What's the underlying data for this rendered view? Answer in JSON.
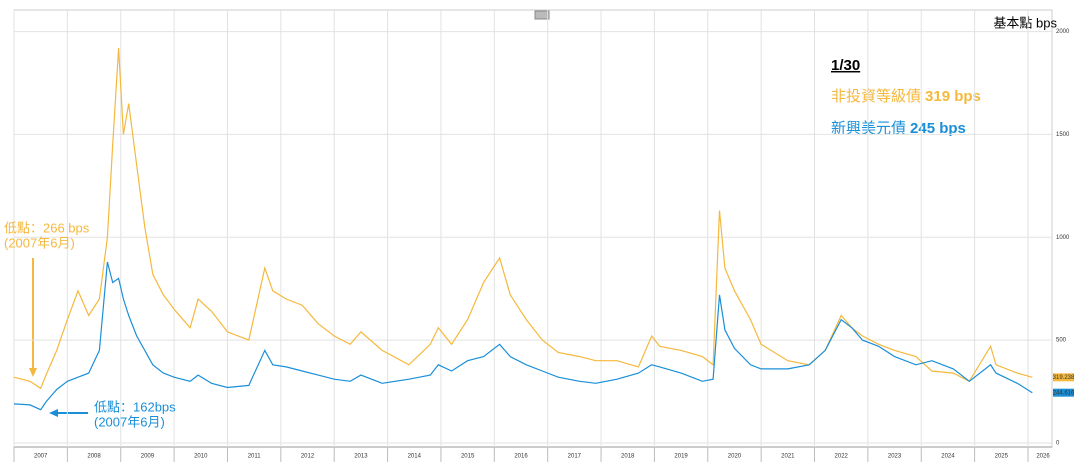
{
  "chart_data": {
    "type": "line",
    "unit_label": "基本點 bps",
    "date_label": "1/30",
    "x": [
      2007.0,
      2007.3,
      2007.5,
      2007.6,
      2007.8,
      2008.0,
      2008.2,
      2008.4,
      2008.6,
      2008.75,
      2008.85,
      2008.96,
      2009.05,
      2009.15,
      2009.3,
      2009.45,
      2009.6,
      2009.8,
      2010.0,
      2010.3,
      2010.45,
      2010.7,
      2011.0,
      2011.4,
      2011.7,
      2011.85,
      2012.1,
      2012.4,
      2012.7,
      2013.0,
      2013.3,
      2013.5,
      2013.9,
      2014.4,
      2014.8,
      2014.95,
      2015.2,
      2015.5,
      2015.8,
      2016.1,
      2016.3,
      2016.6,
      2016.9,
      2017.2,
      2017.6,
      2017.9,
      2018.3,
      2018.7,
      2018.95,
      2019.1,
      2019.5,
      2019.9,
      2020.1,
      2020.22,
      2020.32,
      2020.5,
      2020.8,
      2021.0,
      2021.5,
      2021.9,
      2022.2,
      2022.5,
      2022.7,
      2022.9,
      2023.2,
      2023.5,
      2023.9,
      2024.2,
      2024.6,
      2024.9,
      2025.3,
      2025.4,
      2025.8,
      2026.08
    ],
    "series": [
      {
        "name": "非投資等級債",
        "legend_value": "319 bps",
        "end_label": "319.238",
        "color": "#f5b83d",
        "values": [
          320,
          300,
          266,
          330,
          450,
          600,
          740,
          620,
          700,
          1000,
          1450,
          1920,
          1500,
          1650,
          1350,
          1050,
          820,
          720,
          650,
          560,
          700,
          640,
          540,
          500,
          850,
          740,
          700,
          670,
          580,
          520,
          480,
          540,
          450,
          380,
          480,
          560,
          480,
          600,
          780,
          900,
          720,
          600,
          500,
          440,
          420,
          400,
          400,
          370,
          520,
          470,
          450,
          420,
          380,
          1130,
          850,
          740,
          600,
          480,
          400,
          380,
          450,
          620,
          560,
          520,
          480,
          450,
          420,
          350,
          340,
          300,
          470,
          380,
          340,
          319.238
        ]
      },
      {
        "name": "新興美元債",
        "legend_value": "245 bps",
        "end_label": "244.616",
        "color": "#1a8fd8",
        "values": [
          190,
          185,
          162,
          200,
          260,
          300,
          320,
          340,
          450,
          880,
          780,
          800,
          700,
          620,
          520,
          450,
          380,
          340,
          320,
          300,
          330,
          290,
          270,
          280,
          450,
          380,
          370,
          350,
          330,
          310,
          300,
          330,
          290,
          310,
          330,
          380,
          350,
          400,
          420,
          480,
          420,
          380,
          350,
          320,
          300,
          290,
          310,
          340,
          380,
          370,
          340,
          300,
          310,
          720,
          550,
          460,
          380,
          360,
          360,
          380,
          450,
          600,
          560,
          500,
          470,
          420,
          380,
          400,
          360,
          300,
          380,
          340,
          290,
          244.616
        ]
      }
    ],
    "annotations": [
      {
        "text": "低點：266 bps",
        "subtext": "(2007年6月)",
        "series": 0
      },
      {
        "text": "低點：162bps",
        "subtext": "(2007年6月)",
        "series": 1
      }
    ],
    "xlim": [
      2007,
      2026.45
    ],
    "xticks": [
      2007,
      2008,
      2009,
      2010,
      2011,
      2012,
      2013,
      2014,
      2015,
      2016,
      2017,
      2018,
      2019,
      2020,
      2021,
      2022,
      2023,
      2024,
      2025,
      2026
    ],
    "ylim": [
      0,
      2100
    ],
    "yticks": [
      0,
      500,
      1000,
      1500,
      2000
    ],
    "grid": true
  }
}
